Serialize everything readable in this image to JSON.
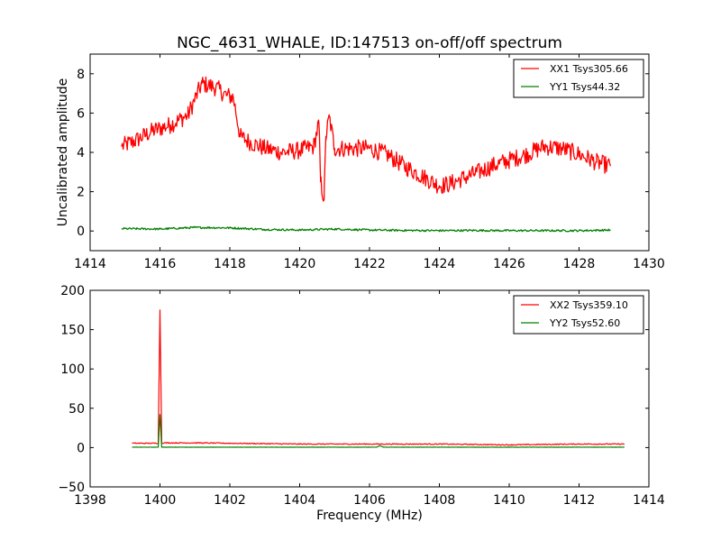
{
  "chart_data": [
    {
      "type": "line",
      "title": "NGC_4631_WHALE, ID:147513 on-off/off spectrum",
      "xlabel": "",
      "ylabel": "Uncalibrated amplitude",
      "xlim": [
        1414,
        1430
      ],
      "ylim": [
        -1,
        9
      ],
      "xticks": [
        1414,
        1416,
        1418,
        1420,
        1422,
        1424,
        1426,
        1428,
        1430
      ],
      "xtick_labels": [
        "1414",
        "1416",
        "1418",
        "1420",
        "1422",
        "1424",
        "1426",
        "1428",
        "1430"
      ],
      "yticks": [
        0,
        2,
        4,
        6,
        8
      ],
      "ytick_labels": [
        "0",
        "2",
        "4",
        "6",
        "8"
      ],
      "grid": false,
      "legend_position": "top-right",
      "series": [
        {
          "name": "XX1 Tsys305.66",
          "color": "#ff0000",
          "noise": 0.45,
          "x": [
            1414.9,
            1415.3,
            1415.8,
            1416.3,
            1416.8,
            1417.2,
            1417.6,
            1417.9,
            1418.1,
            1418.3,
            1418.6,
            1419.0,
            1419.5,
            1420.0,
            1420.4,
            1420.55,
            1420.6,
            1420.7,
            1420.75,
            1420.85,
            1421.0,
            1421.5,
            1422.0,
            1422.5,
            1423.0,
            1423.5,
            1424.0,
            1424.3,
            1424.7,
            1425.0,
            1425.5,
            1426.0,
            1426.5,
            1427.0,
            1427.5,
            1428.0,
            1428.5,
            1428.9
          ],
          "values": [
            4.3,
            4.6,
            5.1,
            5.4,
            5.9,
            7.5,
            7.3,
            6.9,
            6.8,
            4.8,
            4.5,
            4.2,
            4.0,
            4.1,
            4.3,
            5.5,
            2.5,
            1.6,
            4.8,
            5.8,
            4.2,
            4.2,
            4.2,
            3.9,
            3.3,
            2.8,
            2.3,
            2.4,
            2.7,
            2.9,
            3.3,
            3.6,
            3.9,
            4.3,
            4.2,
            3.9,
            3.5,
            3.3
          ]
        },
        {
          "name": "YY1 Tsys44.32",
          "color": "#008000",
          "noise": 0.05,
          "x": [
            1414.9,
            1416.0,
            1417.0,
            1418.0,
            1419.0,
            1420.0,
            1421.0,
            1422.0,
            1423.0,
            1424.0,
            1425.0,
            1426.0,
            1427.0,
            1428.0,
            1428.9
          ],
          "values": [
            0.12,
            0.1,
            0.18,
            0.16,
            0.08,
            0.05,
            0.1,
            0.05,
            0.03,
            0.02,
            0.03,
            0.02,
            0.02,
            0.02,
            0.05
          ]
        }
      ]
    },
    {
      "type": "line",
      "title": "",
      "xlabel": "Frequency (MHz)",
      "ylabel": "",
      "xlim": [
        1398,
        1414
      ],
      "ylim": [
        -50,
        200
      ],
      "xticks": [
        1398,
        1400,
        1402,
        1404,
        1406,
        1408,
        1410,
        1412,
        1414
      ],
      "xtick_labels": [
        "1398",
        "1400",
        "1402",
        "1404",
        "1406",
        "1408",
        "1410",
        "1412",
        "1414"
      ],
      "yticks": [
        -50,
        0,
        50,
        100,
        150,
        200
      ],
      "ytick_labels": [
        "−50",
        "0",
        "50",
        "100",
        "150",
        "200"
      ],
      "grid": false,
      "legend_position": "top-right",
      "series": [
        {
          "name": "XX2 Tsys359.10",
          "color": "#ff0000",
          "noise": 0.6,
          "x": [
            1399.2,
            1399.95,
            1400.0,
            1400.05,
            1401.0,
            1402.0,
            1404.0,
            1406.0,
            1408.0,
            1410.0,
            1412.0,
            1413.3
          ],
          "values": [
            5.5,
            5.5,
            175,
            6.0,
            6.0,
            5.5,
            4.5,
            4.5,
            4.5,
            3.5,
            4.5,
            4.5
          ]
        },
        {
          "name": "YY2 Tsys52.60",
          "color": "#008000",
          "noise": 0.1,
          "x": [
            1399.2,
            1399.95,
            1400.0,
            1400.05,
            1406.2,
            1406.3,
            1406.4,
            1413.3
          ],
          "values": [
            0.5,
            0.5,
            42,
            0.5,
            0.5,
            2.5,
            0.5,
            0.5
          ]
        }
      ]
    }
  ]
}
